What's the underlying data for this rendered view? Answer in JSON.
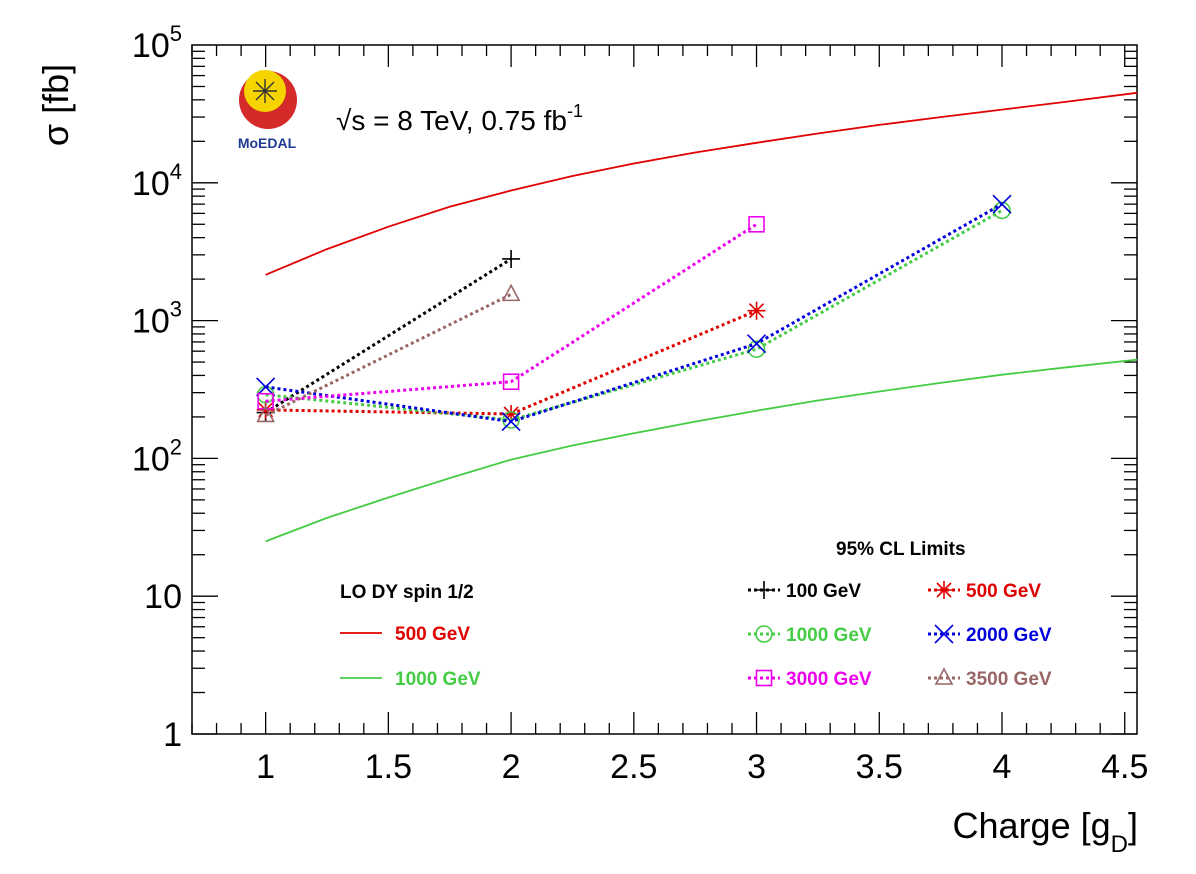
{
  "chart_data": {
    "type": "line",
    "xlabel": "Charge [g",
    "xlabel_sub": "D",
    "xlabel_close": "]",
    "ylabel": "σ [fb]",
    "xlim": [
      0.7,
      4.55
    ],
    "ylim": [
      1,
      100000
    ],
    "yscale": "log",
    "x_ticks": [
      "1",
      "1.5",
      "2",
      "2.5",
      "3",
      "3.5",
      "4",
      "4.5"
    ],
    "x_tick_values": [
      1,
      1.5,
      2,
      2.5,
      3,
      3.5,
      4,
      4.5
    ],
    "y_ticks": [
      {
        "value": 1,
        "base": "1",
        "exp": ""
      },
      {
        "value": 10,
        "base": "10",
        "exp": ""
      },
      {
        "value": 100,
        "base": "10",
        "exp": "2"
      },
      {
        "value": 1000,
        "base": "10",
        "exp": "3"
      },
      {
        "value": 10000,
        "base": "10",
        "exp": "4"
      },
      {
        "value": 100000,
        "base": "10",
        "exp": "5"
      }
    ],
    "annotation": {
      "sqrt": "√s",
      "text": " = 8 TeV, 0.75 fb",
      "sup": "-1"
    },
    "logo": {
      "text": "MoEDAL"
    },
    "theory_title": "LO DY spin 1/2",
    "limits_title": "95% CL Limits",
    "theory": [
      {
        "name": "500 GeV",
        "color": "#e00000",
        "x": [
          1,
          1.25,
          1.5,
          1.75,
          2,
          2.25,
          2.5,
          2.75,
          3,
          3.25,
          3.5,
          3.75,
          4,
          4.25,
          4.55
        ],
        "y": [
          2150,
          3300,
          4800,
          6700,
          8800,
          11200,
          13800,
          16600,
          19500,
          22800,
          26300,
          30000,
          34000,
          38500,
          45000
        ]
      },
      {
        "name": "1000 GeV",
        "color": "#44cc44",
        "x": [
          1,
          1.25,
          1.5,
          1.75,
          2,
          2.25,
          2.5,
          2.75,
          3,
          3.25,
          3.5,
          3.75,
          4,
          4.25,
          4.55
        ],
        "y": [
          25,
          37,
          52,
          72,
          98,
          124,
          152,
          185,
          222,
          263,
          306,
          353,
          405,
          455,
          520
        ]
      }
    ],
    "series": [
      {
        "name": "100 GeV",
        "color": "#000000",
        "marker": "plus",
        "x": [
          1,
          2
        ],
        "y": [
          215,
          2800
        ]
      },
      {
        "name": "500 GeV",
        "color": "#e00000",
        "marker": "star",
        "x": [
          1,
          2,
          3
        ],
        "y": [
          225,
          210,
          1180
        ]
      },
      {
        "name": "1000 GeV",
        "color": "#44cc44",
        "marker": "circle",
        "x": [
          1,
          2,
          3,
          4
        ],
        "y": [
          290,
          190,
          620,
          6300
        ]
      },
      {
        "name": "2000 GeV",
        "color": "#0000dd",
        "marker": "cross",
        "x": [
          1,
          2,
          3,
          4
        ],
        "y": [
          330,
          185,
          680,
          7000
        ]
      },
      {
        "name": "3000 GeV",
        "color": "#ee00ee",
        "marker": "square",
        "x": [
          1,
          2,
          3
        ],
        "y": [
          260,
          360,
          5000
        ]
      },
      {
        "name": "3500 GeV",
        "color": "#996666",
        "marker": "triangle",
        "x": [
          1,
          2
        ],
        "y": [
          205,
          1550
        ]
      }
    ]
  }
}
